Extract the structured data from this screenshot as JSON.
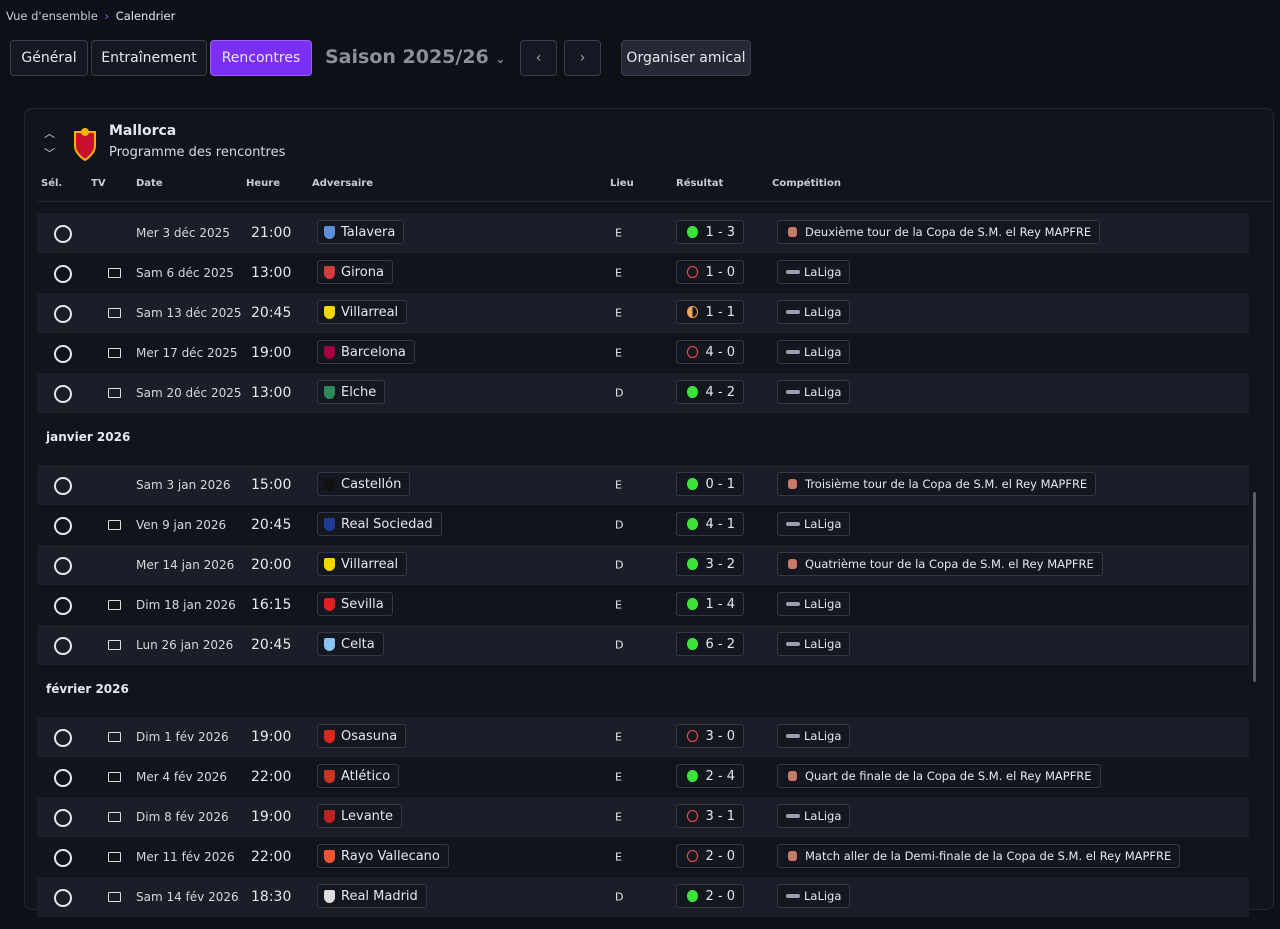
{
  "breadcrumb": [
    "Vue d'ensemble",
    "Calendrier"
  ],
  "tabs": [
    {
      "label": "Général",
      "active": false
    },
    {
      "label": "Entraînement",
      "active": false
    },
    {
      "label": "Rencontres",
      "active": true
    }
  ],
  "season": "Saison 2025/26",
  "friendly_button": "Organiser amical",
  "club": {
    "name": "Mallorca",
    "subtitle": "Programme des rencontres"
  },
  "columns": [
    "Sél.",
    "TV",
    "Date",
    "Heure",
    "Adversaire",
    "Lieu",
    "Résultat",
    "Compétition"
  ],
  "sections": [
    {
      "month": null,
      "rows": [
        {
          "tv": false,
          "date": "Mer 3 déc 2025",
          "time": "21:00",
          "opponent": "Talavera",
          "venue": "E",
          "score": "1 - 3",
          "outcome": "win",
          "competition": "Deuxième tour de la Copa de S.M. el Rey MAPFRE",
          "cup": true
        },
        {
          "tv": true,
          "date": "Sam 6 déc 2025",
          "time": "13:00",
          "opponent": "Girona",
          "venue": "E",
          "score": "1 - 0",
          "outcome": "loss",
          "competition": "LaLiga",
          "cup": false
        },
        {
          "tv": true,
          "date": "Sam 13 déc 2025",
          "time": "20:45",
          "opponent": "Villarreal",
          "venue": "E",
          "score": "1 - 1",
          "outcome": "draw",
          "competition": "LaLiga",
          "cup": false
        },
        {
          "tv": true,
          "date": "Mer 17 déc 2025",
          "time": "19:00",
          "opponent": "Barcelona",
          "venue": "E",
          "score": "4 - 0",
          "outcome": "loss",
          "competition": "LaLiga",
          "cup": false
        },
        {
          "tv": true,
          "date": "Sam 20 déc 2025",
          "time": "13:00",
          "opponent": "Elche",
          "venue": "D",
          "score": "4 - 2",
          "outcome": "win",
          "competition": "LaLiga",
          "cup": false
        }
      ]
    },
    {
      "month": "janvier 2026",
      "rows": [
        {
          "tv": false,
          "date": "Sam 3 jan 2026",
          "time": "15:00",
          "opponent": "Castellón",
          "venue": "E",
          "score": "0 - 1",
          "outcome": "win",
          "competition": "Troisième tour de la Copa de S.M. el Rey MAPFRE",
          "cup": true
        },
        {
          "tv": true,
          "date": "Ven 9 jan 2026",
          "time": "20:45",
          "opponent": "Real Sociedad",
          "venue": "D",
          "score": "4 - 1",
          "outcome": "win",
          "competition": "LaLiga",
          "cup": false
        },
        {
          "tv": false,
          "date": "Mer 14 jan 2026",
          "time": "20:00",
          "opponent": "Villarreal",
          "venue": "D",
          "score": "3 - 2",
          "outcome": "win",
          "competition": "Quatrième tour de la Copa de S.M. el Rey MAPFRE",
          "cup": true
        },
        {
          "tv": true,
          "date": "Dim 18 jan 2026",
          "time": "16:15",
          "opponent": "Sevilla",
          "venue": "E",
          "score": "1 - 4",
          "outcome": "win",
          "competition": "LaLiga",
          "cup": false
        },
        {
          "tv": true,
          "date": "Lun 26 jan 2026",
          "time": "20:45",
          "opponent": "Celta",
          "venue": "D",
          "score": "6 - 2",
          "outcome": "win",
          "competition": "LaLiga",
          "cup": false
        }
      ]
    },
    {
      "month": "février 2026",
      "rows": [
        {
          "tv": true,
          "date": "Dim 1 fév 2026",
          "time": "19:00",
          "opponent": "Osasuna",
          "venue": "E",
          "score": "3 - 0",
          "outcome": "loss",
          "competition": "LaLiga",
          "cup": false
        },
        {
          "tv": true,
          "date": "Mer 4 fév 2026",
          "time": "22:00",
          "opponent": "Atlético",
          "venue": "E",
          "score": "2 - 4",
          "outcome": "win",
          "competition": "Quart de finale de la Copa de S.M. el Rey MAPFRE",
          "cup": true
        },
        {
          "tv": true,
          "date": "Dim 8 fév 2026",
          "time": "19:00",
          "opponent": "Levante",
          "venue": "E",
          "score": "3 - 1",
          "outcome": "loss",
          "competition": "LaLiga",
          "cup": false
        },
        {
          "tv": true,
          "date": "Mer 11 fév 2026",
          "time": "22:00",
          "opponent": "Rayo Vallecano",
          "venue": "E",
          "score": "2 - 0",
          "outcome": "loss",
          "competition": "Match aller de la Demi-finale de la Copa de S.M. el Rey MAPFRE",
          "cup": true
        },
        {
          "tv": true,
          "date": "Sam 14 fév 2026",
          "time": "18:30",
          "opponent": "Real Madrid",
          "venue": "D",
          "score": "2 - 0",
          "outcome": "win",
          "competition": "LaLiga",
          "cup": false
        }
      ]
    }
  ]
}
